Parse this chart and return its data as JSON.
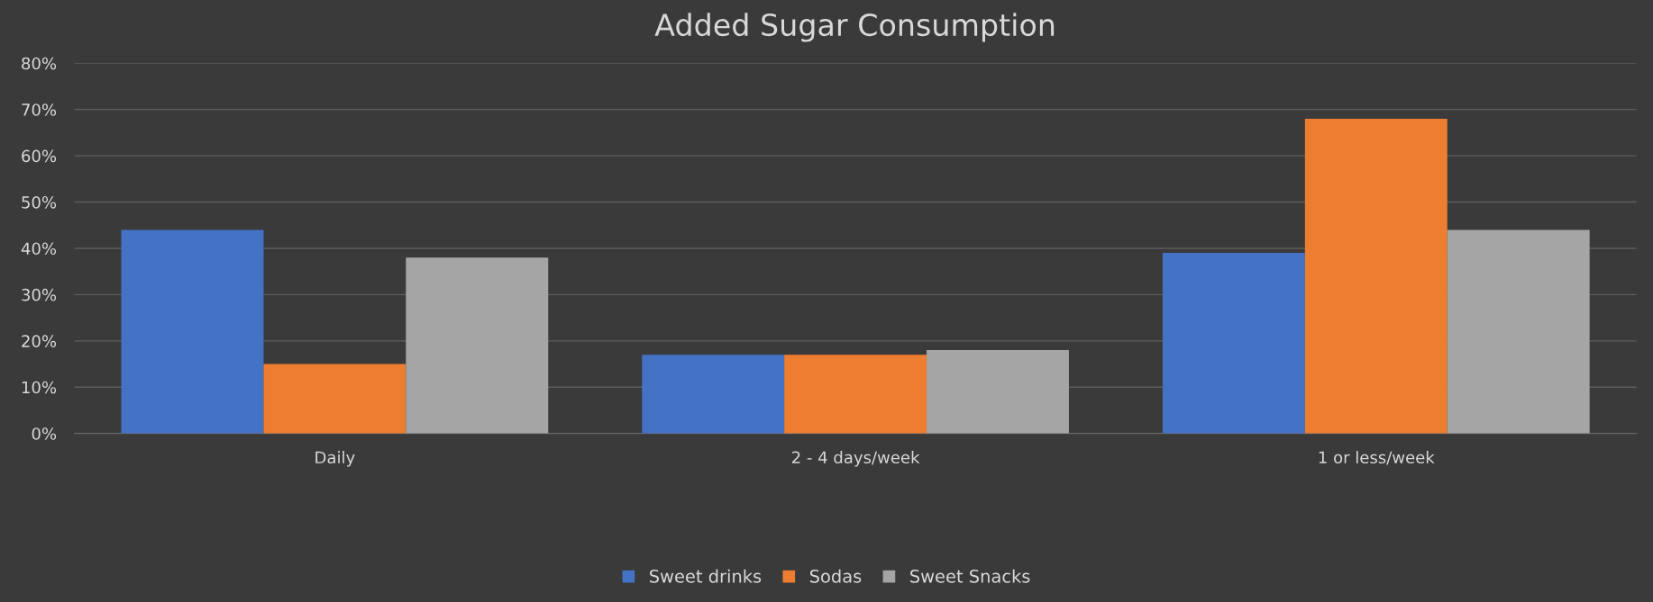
{
  "chart_data": {
    "type": "bar",
    "title": "Added Sugar Consumption",
    "categories": [
      "Daily",
      "2 - 4 days/week",
      "1 or less/week"
    ],
    "series": [
      {
        "name": "Sweet drinks",
        "color": "#4472c4",
        "values": [
          44,
          17,
          39
        ]
      },
      {
        "name": "Sodas",
        "color": "#ed7d31",
        "values": [
          15,
          17,
          68
        ]
      },
      {
        "name": "Sweet Snacks",
        "color": "#a5a5a5",
        "values": [
          38,
          18,
          44
        ]
      }
    ],
    "ylim": [
      0,
      80
    ],
    "yticks": [
      {
        "value": 0,
        "label": "0%"
      },
      {
        "value": 10,
        "label": "10%"
      },
      {
        "value": 20,
        "label": "20%"
      },
      {
        "value": 30,
        "label": "30%"
      },
      {
        "value": 40,
        "label": "40%"
      },
      {
        "value": 50,
        "label": "50%"
      },
      {
        "value": 60,
        "label": "60%"
      },
      {
        "value": 70,
        "label": "70%"
      },
      {
        "value": 80,
        "label": "80%"
      }
    ],
    "grid": "y",
    "legend": "bottom"
  }
}
